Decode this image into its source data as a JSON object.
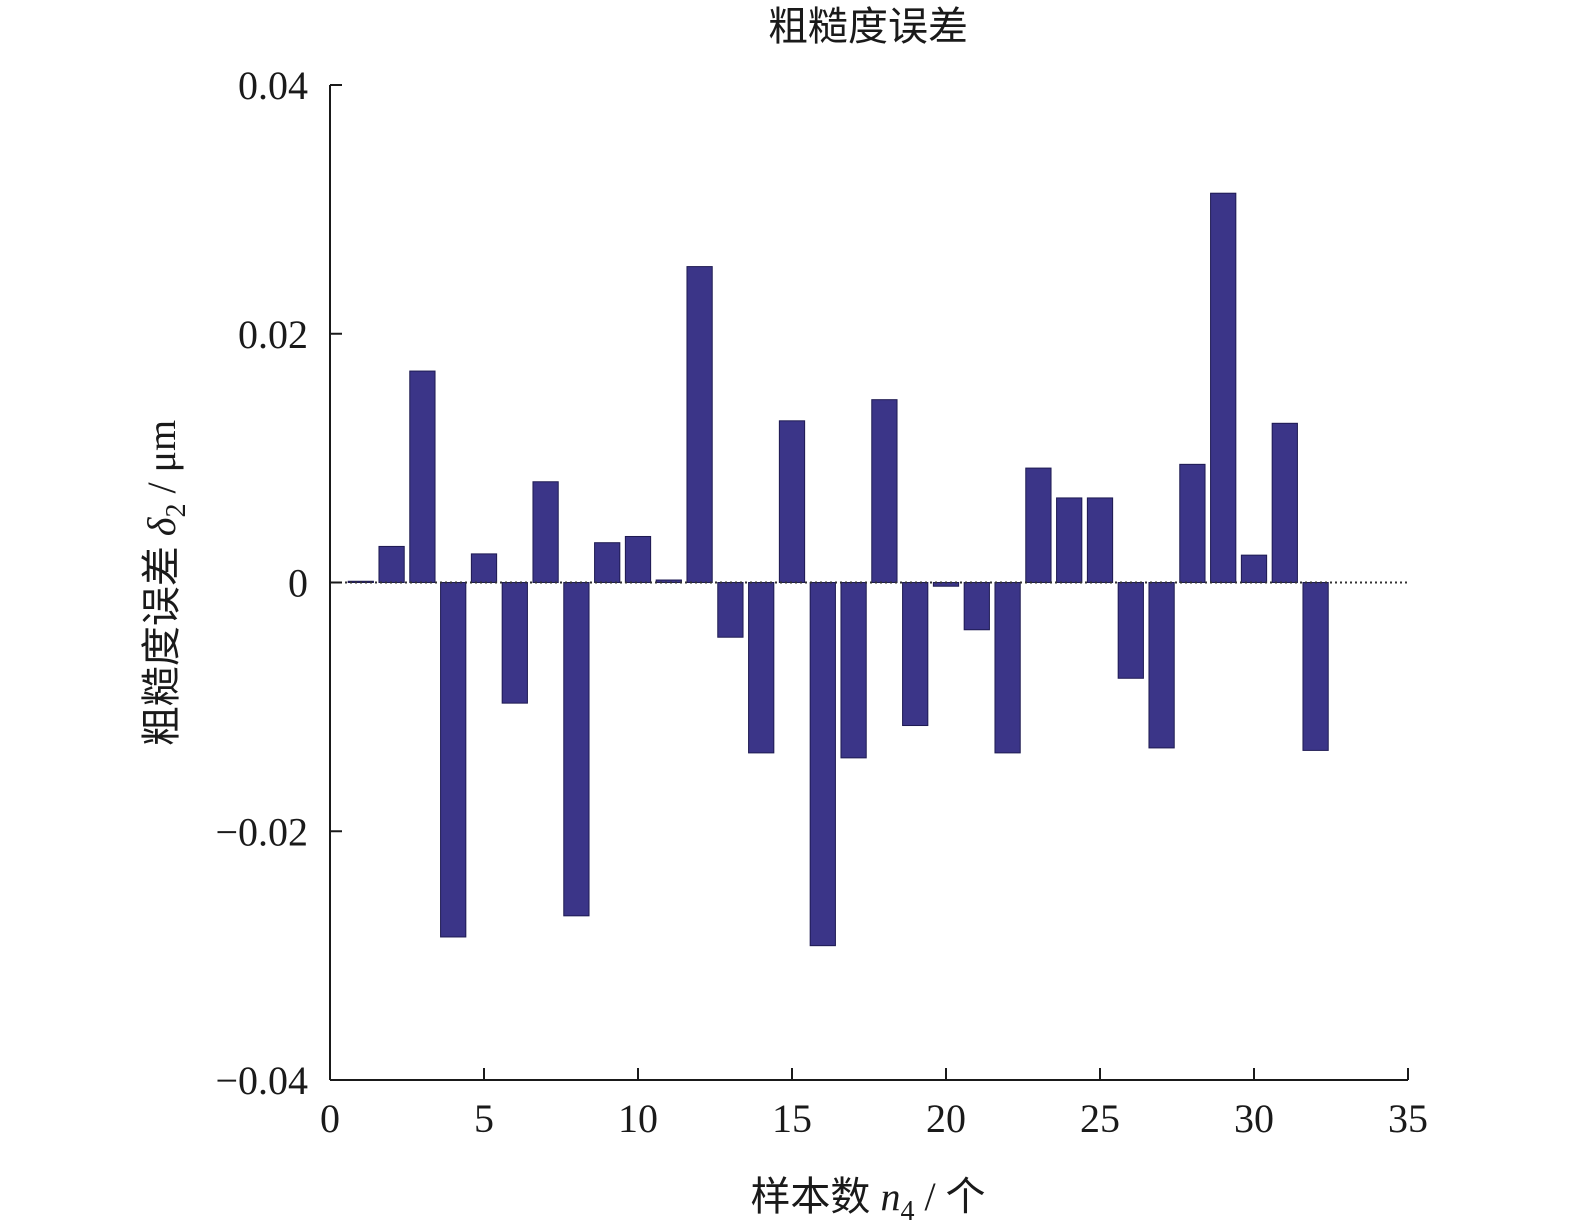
{
  "chart_data": {
    "type": "bar",
    "title": "粗糙度误差",
    "xlabel": {
      "main": "样本数 ",
      "var": "n",
      "sub": "4",
      "unit": " / 个"
    },
    "ylabel": {
      "main": "粗糙度误差 ",
      "var": "δ",
      "sub": "2",
      "unit": " / μm"
    },
    "xlim": [
      0,
      35
    ],
    "ylim": [
      -0.04,
      0.04
    ],
    "xticks": [
      0,
      5,
      10,
      15,
      20,
      25,
      30,
      35
    ],
    "xtick_labels": [
      "0",
      "5",
      "10",
      "15",
      "20",
      "25",
      "30",
      "35"
    ],
    "yticks": [
      -0.04,
      -0.02,
      0,
      0.02,
      0.04
    ],
    "ytick_labels": [
      "−0.04",
      "−0.02",
      "0",
      "0.02",
      "0.04"
    ],
    "grid": false,
    "legend": "none",
    "bar_color": "#3b3588",
    "x": [
      1,
      2,
      3,
      4,
      5,
      6,
      7,
      8,
      9,
      10,
      11,
      12,
      13,
      14,
      15,
      16,
      17,
      18,
      19,
      20,
      21,
      22,
      23,
      24,
      25,
      26,
      27,
      28,
      29,
      30,
      31,
      32
    ],
    "values": [
      0.0001,
      0.0029,
      0.017,
      -0.0285,
      0.0023,
      -0.0097,
      0.0081,
      -0.0268,
      0.0032,
      0.0037,
      0.0002,
      0.0254,
      -0.0044,
      -0.0137,
      0.013,
      -0.0292,
      -0.0141,
      0.0147,
      -0.0115,
      -0.0003,
      -0.0038,
      -0.0137,
      0.0092,
      0.0068,
      0.0068,
      -0.0077,
      -0.0133,
      0.0095,
      0.0313,
      0.0022,
      0.0128,
      -0.0135
    ]
  }
}
